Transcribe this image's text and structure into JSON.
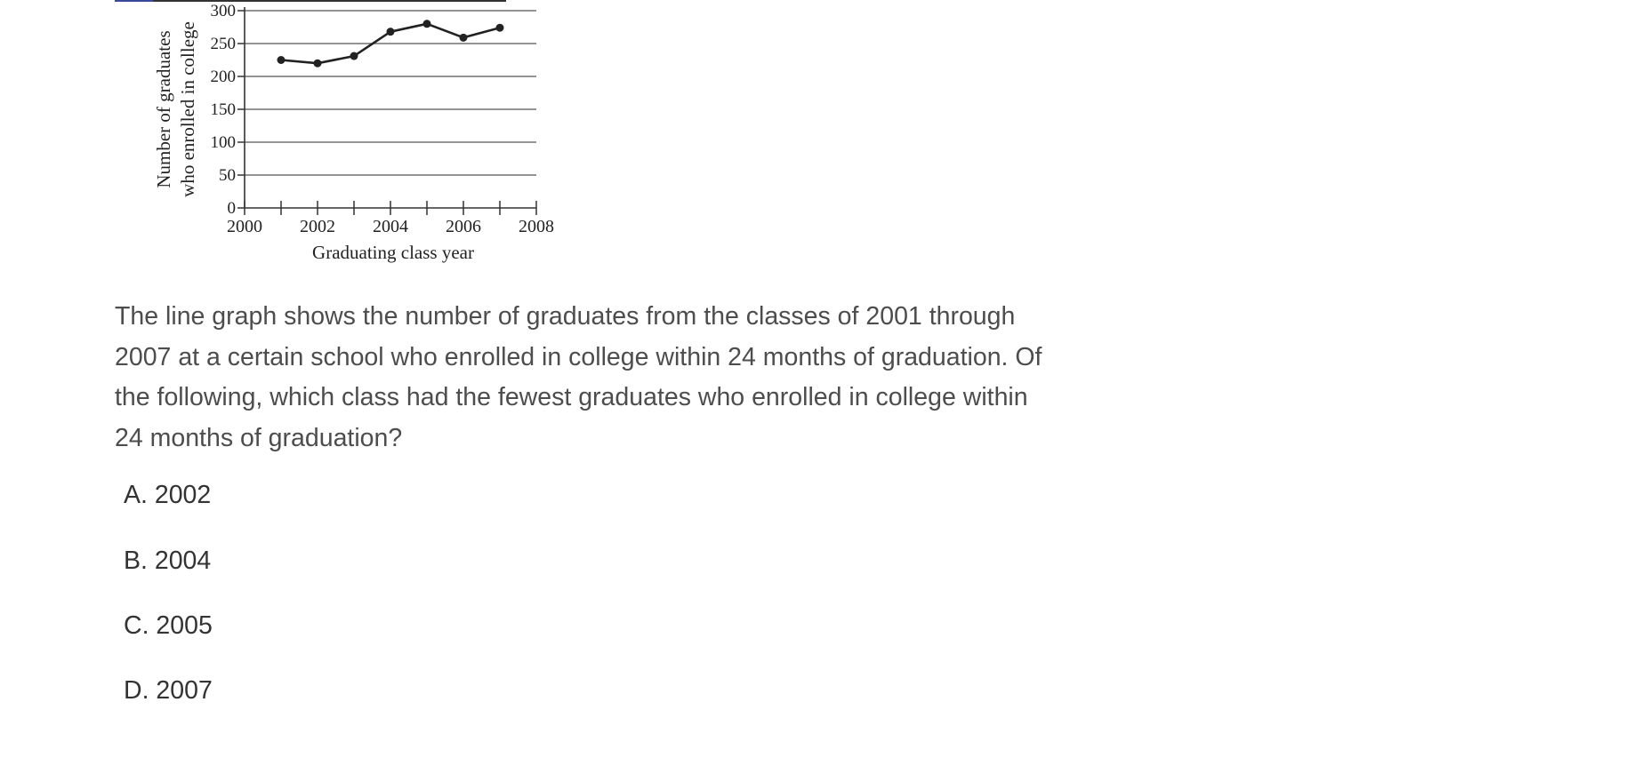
{
  "chart_data": {
    "type": "line",
    "title": "",
    "xlabel": "Graduating class year",
    "ylabel": [
      "Number of graduates",
      "who enrolled in college"
    ],
    "x": [
      2001,
      2002,
      2003,
      2004,
      2005,
      2006,
      2007
    ],
    "series": [
      {
        "values": [
          225,
          220,
          231,
          268,
          280,
          259,
          274
        ]
      }
    ],
    "xlim": [
      2000,
      2008
    ],
    "ylim": [
      0,
      300
    ],
    "xticks": [
      2000,
      2001,
      2002,
      2003,
      2004,
      2005,
      2006,
      2007,
      2008
    ],
    "xtick_labels": [
      "2000",
      "2002",
      "2004",
      "2006",
      "2008"
    ],
    "yticks": [
      0,
      50,
      100,
      150,
      200,
      250,
      300
    ],
    "ytick_labels": [
      "0",
      "50",
      "100",
      "150",
      "200",
      "250",
      "300"
    ],
    "grid": "horizontal",
    "line_color": "#222222"
  },
  "question": {
    "text": "The line graph shows the number of graduates from the classes of 2001 through 2007 at a certain school who enrolled in college within 24 months of graduation. Of the following, which class had the fewest graduates who enrolled in college within 24 months of graduation?"
  },
  "choices": [
    {
      "label": "A. 2002"
    },
    {
      "label": "B. 2004"
    },
    {
      "label": "C. 2005"
    },
    {
      "label": "D. 2007"
    }
  ]
}
